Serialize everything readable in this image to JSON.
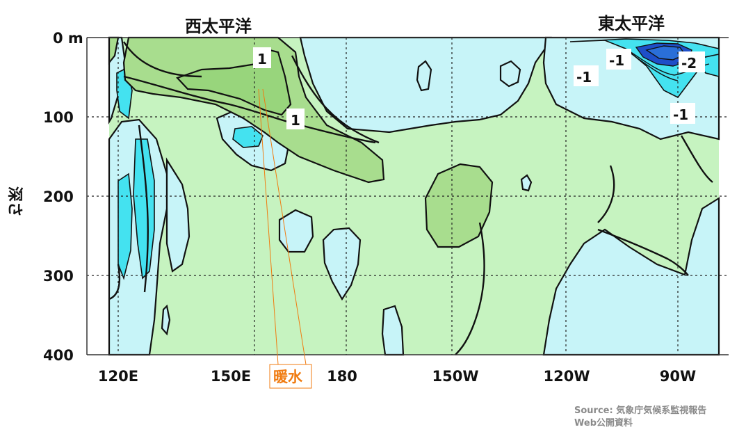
{
  "chart_data": {
    "type": "heatmap",
    "xlabel": "",
    "ylabel": "深さ",
    "x_ticks": [
      "120E",
      "150E",
      "180",
      "150W",
      "120W",
      "90W"
    ],
    "y_ticks": [
      "0 m",
      "100",
      "200",
      "300",
      "400"
    ],
    "xlim": [
      "115E",
      "80W"
    ],
    "ylim": [
      400,
      0
    ],
    "grid": true,
    "regions": [
      "西太平洋",
      "東太平洋"
    ],
    "contour_levels": [
      -2,
      -1,
      0,
      1
    ],
    "contour_labels": [
      {
        "text": "1",
        "lon": "162E",
        "depth": 30
      },
      {
        "text": "1",
        "lon": "167E",
        "depth": 105
      },
      {
        "text": "-1",
        "lon": "103W",
        "depth": 25
      },
      {
        "text": "-1",
        "lon": "111W",
        "depth": 50
      },
      {
        "text": "-2",
        "lon": "88W",
        "depth": 30
      },
      {
        "text": "-1",
        "lon": "91W",
        "depth": 95
      }
    ],
    "annotation": "暖水",
    "colors": {
      "strong_cold": "#2a6fd8",
      "cold": "#40e0f0",
      "cool": "#c8f5fa",
      "neutral": "#c8f5c0",
      "warm": "#a8df90"
    }
  },
  "source_line1": "Source: 気象庁気候系監視報告",
  "source_line2": "Web公開資料"
}
